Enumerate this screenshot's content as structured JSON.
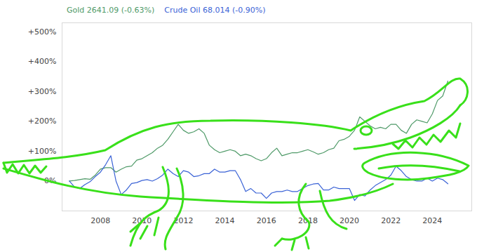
{
  "chart_data": {
    "type": "line",
    "legend": "top-left",
    "grid": false,
    "xlim": [
      2006.15,
      2025.9
    ],
    "xticks": [
      2008,
      2010,
      2012,
      2014,
      2016,
      2018,
      2020,
      2022,
      2024
    ],
    "ylim": [
      -100,
      530
    ],
    "yticks": [
      {
        "value": 0,
        "label": "0%"
      },
      {
        "value": 100,
        "label": "+100%"
      },
      {
        "value": 200,
        "label": "+200%"
      },
      {
        "value": 300,
        "label": "+300%"
      },
      {
        "value": 400,
        "label": "+400%"
      },
      {
        "value": 500,
        "label": "+500%"
      }
    ],
    "x": [
      2006.5,
      2006.75,
      2007,
      2007.25,
      2007.5,
      2007.75,
      2008,
      2008.25,
      2008.5,
      2008.75,
      2009,
      2009.25,
      2009.5,
      2009.75,
      2010,
      2010.25,
      2010.5,
      2010.75,
      2011,
      2011.25,
      2011.5,
      2011.75,
      2012,
      2012.25,
      2012.5,
      2012.75,
      2013,
      2013.25,
      2013.5,
      2013.75,
      2014,
      2014.25,
      2014.5,
      2014.75,
      2015,
      2015.25,
      2015.5,
      2015.75,
      2016,
      2016.25,
      2016.5,
      2016.75,
      2017,
      2017.25,
      2017.5,
      2017.75,
      2018,
      2018.25,
      2018.5,
      2018.75,
      2019,
      2019.25,
      2019.5,
      2019.75,
      2020,
      2020.25,
      2020.5,
      2020.75,
      2021,
      2021.25,
      2021.5,
      2021.75,
      2022,
      2022.25,
      2022.5,
      2022.75,
      2023,
      2023.25,
      2023.5,
      2023.75,
      2024,
      2024.25,
      2024.5,
      2024.75
    ],
    "series": [
      {
        "name": "Gold 2641.09 (-0.63%)",
        "color": "#4f9a68",
        "values": [
          0,
          2,
          5,
          8,
          6,
          20,
          40,
          45,
          45,
          30,
          40,
          48,
          50,
          70,
          75,
          85,
          95,
          110,
          120,
          140,
          165,
          190,
          170,
          160,
          165,
          175,
          160,
          120,
          105,
          95,
          100,
          105,
          100,
          85,
          90,
          85,
          75,
          68,
          75,
          95,
          110,
          85,
          90,
          95,
          95,
          100,
          105,
          98,
          90,
          95,
          105,
          110,
          135,
          140,
          150,
          170,
          215,
          200,
          185,
          175,
          180,
          175,
          190,
          190,
          170,
          160,
          190,
          205,
          200,
          195,
          225,
          270,
          285,
          335
        ]
      },
      {
        "name": "Crude Oil 68.014 (-0.90%)",
        "color": "#3b63d6",
        "values": [
          0,
          -20,
          -25,
          -12,
          -2,
          15,
          30,
          55,
          85,
          0,
          -45,
          -30,
          -8,
          -5,
          2,
          5,
          0,
          8,
          20,
          40,
          25,
          15,
          35,
          30,
          15,
          18,
          25,
          25,
          40,
          30,
          30,
          35,
          35,
          5,
          -35,
          -25,
          -40,
          -40,
          -58,
          -40,
          -35,
          -35,
          -30,
          -35,
          -35,
          -25,
          -15,
          -10,
          -8,
          -30,
          -30,
          -20,
          -25,
          -25,
          -25,
          -65,
          -45,
          -50,
          -30,
          -15,
          -5,
          5,
          20,
          50,
          35,
          15,
          5,
          0,
          0,
          10,
          0,
          10,
          5,
          -9
        ]
      }
    ]
  }
}
